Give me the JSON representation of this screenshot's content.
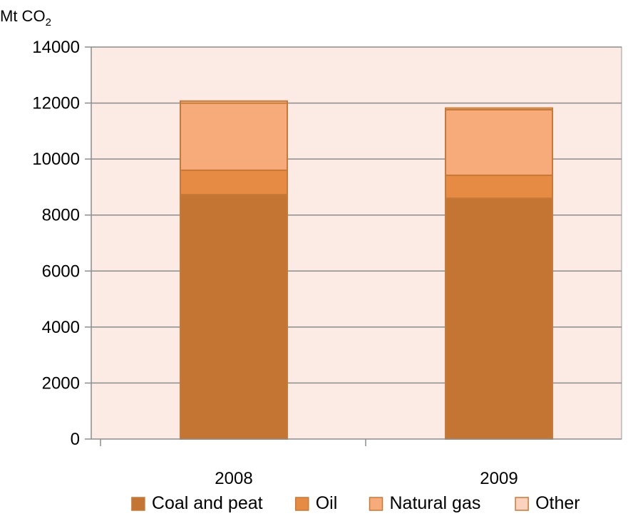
{
  "chart_data": {
    "type": "bar",
    "stacked": true,
    "title": "",
    "ylabel": "Mt CO",
    "ylabel_subscript": "2",
    "xlabel": "",
    "categories": [
      "2008",
      "2009"
    ],
    "ylim": [
      0,
      14000
    ],
    "yticks": [
      0,
      2000,
      4000,
      6000,
      8000,
      10000,
      12000,
      14000
    ],
    "grid": true,
    "legend_position": "bottom",
    "plot_background": "#fcebe4",
    "series": [
      {
        "name": "Coal and peat",
        "color": "#c47534",
        "values": [
          8730,
          8600
        ]
      },
      {
        "name": "Oil",
        "color": "#e68b44",
        "values": [
          870,
          820
        ]
      },
      {
        "name": "Natural gas",
        "color": "#f7aa7a",
        "values": [
          2400,
          2340
        ]
      },
      {
        "name": "Other",
        "color": "#fad2bd",
        "values": [
          70,
          60
        ]
      }
    ]
  }
}
